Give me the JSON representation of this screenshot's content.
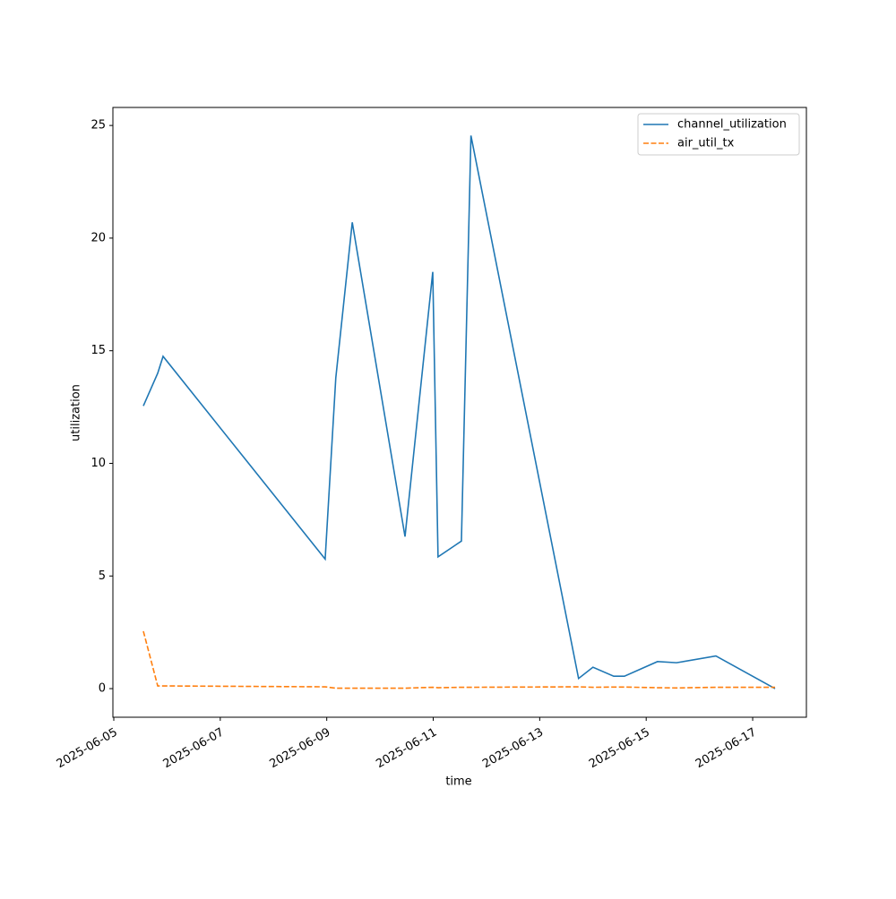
{
  "chart_data": {
    "type": "line",
    "x_label": "time",
    "y_label": "utilization",
    "x": [
      "2025-06-05 13:20",
      "2025-06-05 19:48",
      "2025-06-05 22:13",
      "2025-06-08 23:17",
      "2025-06-09 04:05",
      "2025-06-09 11:30",
      "2025-06-10 11:17",
      "2025-06-10 23:47",
      "2025-06-11 02:10",
      "2025-06-11 12:42",
      "2025-06-11 17:00",
      "2025-06-13 17:31",
      "2025-06-14 00:00",
      "2025-06-14 09:22",
      "2025-06-14 14:10",
      "2025-06-15 05:05",
      "2025-06-15 13:40",
      "2025-06-16 07:25",
      "2025-06-17 10:05"
    ],
    "series": [
      {
        "name": "channel_utilization",
        "color": "#1f77b4",
        "linestyle": "solid",
        "values": [
          12.55,
          14.0,
          14.75,
          5.75,
          13.8,
          20.7,
          6.75,
          18.5,
          5.85,
          6.55,
          24.55,
          0.45,
          0.95,
          0.55,
          0.55,
          1.2,
          1.15,
          1.45,
          0.0
        ]
      },
      {
        "name": "air_util_tx",
        "color": "#ff7f0e",
        "linestyle": "dashed",
        "values": [
          2.55,
          0.12,
          0.12,
          0.08,
          0.02,
          0.02,
          0.02,
          0.06,
          0.04,
          0.06,
          0.06,
          0.08,
          0.06,
          0.07,
          0.07,
          0.04,
          0.03,
          0.06,
          0.06
        ]
      }
    ],
    "xlim": [
      "2025-06-04 23:36",
      "2025-06-18 00:13"
    ],
    "xticks": [
      "2025-06-05",
      "2025-06-07",
      "2025-06-09",
      "2025-06-11",
      "2025-06-13",
      "2025-06-15",
      "2025-06-17"
    ],
    "ylim": [
      -1.27,
      25.8
    ],
    "yticks": [
      0,
      5,
      10,
      15,
      20,
      25
    ],
    "grid": false,
    "legend": "upper right"
  }
}
